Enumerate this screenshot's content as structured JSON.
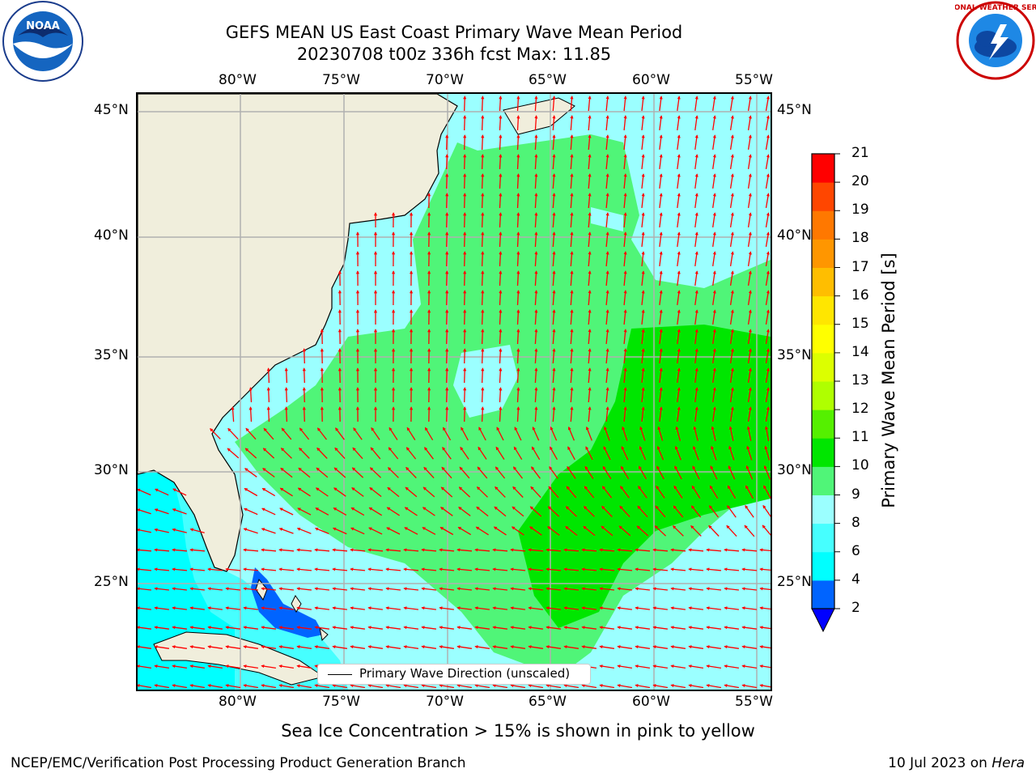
{
  "title": {
    "line1": "GEFS MEAN US East Coast Primary Wave Mean Period",
    "line2": "20230708 t00z 336h fcst   Max: 11.85"
  },
  "axes": {
    "lon_labels": [
      "80°W",
      "75°W",
      "70°W",
      "65°W",
      "60°W",
      "55°W"
    ],
    "lat_labels": [
      "45°N",
      "40°N",
      "35°N",
      "30°N",
      "25°N"
    ]
  },
  "colorbar": {
    "label": "Primary Wave Mean Period [s]",
    "ticks": [
      "2",
      "4",
      "6",
      "8",
      "9",
      "10",
      "11",
      "12",
      "13",
      "14",
      "15",
      "16",
      "17",
      "18",
      "19",
      "20",
      "21"
    ],
    "colors": [
      "#0064ff",
      "#00ffff",
      "#46ffff",
      "#9bffff",
      "#50f578",
      "#00e600",
      "#55f000",
      "#afff00",
      "#dcff00",
      "#ffff00",
      "#ffe600",
      "#ffbe00",
      "#ff9600",
      "#ff7800",
      "#ff4600",
      "#ff0000"
    ],
    "extend_color": "#0000ff"
  },
  "legend": {
    "label": "Primary Wave Direction (unscaled)"
  },
  "footnote": "Sea Ice Concentration > 15% is shown in pink to yellow",
  "footer": {
    "left": "NCEP/EMC/Verification Post Processing Product Generation Branch",
    "right_prefix": "10 Jul 2023 on ",
    "right_machine": "Hera"
  },
  "logos": {
    "noaa": "NOAA",
    "nws": "NATIONAL WEATHER SERVICE"
  },
  "colors": {
    "land": "#f0eedc",
    "arrow": "#ff0000",
    "grid": "#b0b0b0"
  }
}
